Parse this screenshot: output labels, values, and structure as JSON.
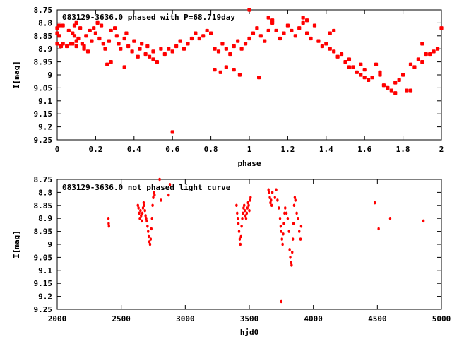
{
  "chart_data": [
    {
      "type": "scatter",
      "title": "083129-3636.0 phased with P=68.719day",
      "xlabel": "phase",
      "ylabel": "I[mag]",
      "xlim": [
        0,
        2
      ],
      "ylim": [
        9.25,
        8.75
      ],
      "y_inverted": true,
      "xticks": [
        "0",
        "0.2",
        "0.4",
        "0.6",
        "0.8",
        "1",
        "1.2",
        "1.4",
        "1.6",
        "1.8",
        "2"
      ],
      "xtick_values": [
        0,
        0.2,
        0.4,
        0.6,
        0.8,
        1.0,
        1.2,
        1.4,
        1.6,
        1.8,
        2.0
      ],
      "yticks": [
        "8.75",
        "8.8",
        "8.85",
        "8.9",
        "8.95",
        "9",
        "9.05",
        "9.1",
        "9.15",
        "9.2",
        "9.25"
      ],
      "ytick_values": [
        8.75,
        8.8,
        8.85,
        8.9,
        8.95,
        9.0,
        9.05,
        9.1,
        9.15,
        9.2,
        9.25
      ],
      "marker_color": "#ff0000",
      "points": [
        [
          0.0,
          8.82
        ],
        [
          0.01,
          8.81
        ],
        [
          0.0,
          8.84
        ],
        [
          0.01,
          8.85
        ],
        [
          0.0,
          8.88
        ],
        [
          0.02,
          8.89
        ],
        [
          0.03,
          8.88
        ],
        [
          0.05,
          8.89
        ],
        [
          0.03,
          8.81
        ],
        [
          0.06,
          8.83
        ],
        [
          0.08,
          8.84
        ],
        [
          0.09,
          8.85
        ],
        [
          0.1,
          8.87
        ],
        [
          0.07,
          8.88
        ],
        [
          0.09,
          8.81
        ],
        [
          0.1,
          8.8
        ],
        [
          0.12,
          8.82
        ],
        [
          0.11,
          8.86
        ],
        [
          0.13,
          8.88
        ],
        [
          0.14,
          8.89
        ],
        [
          0.16,
          8.91
        ],
        [
          0.15,
          8.85
        ],
        [
          0.17,
          8.83
        ],
        [
          0.19,
          8.82
        ],
        [
          0.2,
          8.84
        ],
        [
          0.22,
          8.86
        ],
        [
          0.21,
          8.8
        ],
        [
          0.23,
          8.81
        ],
        [
          0.24,
          8.88
        ],
        [
          0.25,
          8.9
        ],
        [
          0.27,
          8.87
        ],
        [
          0.28,
          8.83
        ],
        [
          0.3,
          8.82
        ],
        [
          0.31,
          8.85
        ],
        [
          0.32,
          8.88
        ],
        [
          0.33,
          8.9
        ],
        [
          0.35,
          8.86
        ],
        [
          0.36,
          8.84
        ],
        [
          0.37,
          8.89
        ],
        [
          0.39,
          8.91
        ],
        [
          0.4,
          8.87
        ],
        [
          0.42,
          8.93
        ],
        [
          0.43,
          8.9
        ],
        [
          0.44,
          8.88
        ],
        [
          0.46,
          8.92
        ],
        [
          0.47,
          8.89
        ],
        [
          0.48,
          8.93
        ],
        [
          0.5,
          8.91
        ],
        [
          0.52,
          8.95
        ],
        [
          0.54,
          8.9
        ],
        [
          0.56,
          8.92
        ],
        [
          0.58,
          8.9
        ],
        [
          0.6,
          8.91
        ],
        [
          0.62,
          8.89
        ],
        [
          0.64,
          8.87
        ],
        [
          0.66,
          8.9
        ],
        [
          0.68,
          8.88
        ],
        [
          0.7,
          8.86
        ],
        [
          0.72,
          8.84
        ],
        [
          0.74,
          8.86
        ],
        [
          0.76,
          8.85
        ],
        [
          0.78,
          8.83
        ],
        [
          0.8,
          8.84
        ],
        [
          0.82,
          8.9
        ],
        [
          0.84,
          8.91
        ],
        [
          0.86,
          8.88
        ],
        [
          0.88,
          8.9
        ],
        [
          0.9,
          8.92
        ],
        [
          0.92,
          8.89
        ],
        [
          0.94,
          8.87
        ],
        [
          0.96,
          8.9
        ],
        [
          0.98,
          8.88
        ],
        [
          1.0,
          8.86
        ],
        [
          1.02,
          8.84
        ],
        [
          1.04,
          8.82
        ],
        [
          1.06,
          8.85
        ],
        [
          1.08,
          8.87
        ],
        [
          1.1,
          8.83
        ],
        [
          1.12,
          8.8
        ],
        [
          1.14,
          8.83
        ],
        [
          1.16,
          8.86
        ],
        [
          1.18,
          8.84
        ],
        [
          1.2,
          8.81
        ],
        [
          1.22,
          8.83
        ],
        [
          1.24,
          8.85
        ],
        [
          1.26,
          8.82
        ],
        [
          1.28,
          8.8
        ],
        [
          1.3,
          8.84
        ],
        [
          1.32,
          8.86
        ],
        [
          1.34,
          8.81
        ],
        [
          1.36,
          8.87
        ],
        [
          1.38,
          8.89
        ],
        [
          1.4,
          8.88
        ],
        [
          1.42,
          8.9
        ],
        [
          1.44,
          8.91
        ],
        [
          1.46,
          8.93
        ],
        [
          1.48,
          8.92
        ],
        [
          1.5,
          8.95
        ],
        [
          1.52,
          8.94
        ],
        [
          1.54,
          8.97
        ],
        [
          1.56,
          8.99
        ],
        [
          1.58,
          9.0
        ],
        [
          1.6,
          8.98
        ],
        [
          1.62,
          9.02
        ],
        [
          1.64,
          9.01
        ],
        [
          1.66,
          8.96
        ],
        [
          1.68,
          9.0
        ],
        [
          1.7,
          9.04
        ],
        [
          1.72,
          9.05
        ],
        [
          1.74,
          9.06
        ],
        [
          1.76,
          9.03
        ],
        [
          1.78,
          9.02
        ],
        [
          1.8,
          9.0
        ],
        [
          1.82,
          9.06
        ],
        [
          1.84,
          8.96
        ],
        [
          1.86,
          8.97
        ],
        [
          1.88,
          8.94
        ],
        [
          1.9,
          8.95
        ],
        [
          1.92,
          8.92
        ],
        [
          1.94,
          8.92
        ],
        [
          1.96,
          8.91
        ],
        [
          1.98,
          8.9
        ],
        [
          2.0,
          8.82
        ],
        [
          0.02,
          8.89
        ],
        [
          0.08,
          8.88
        ],
        [
          0.1,
          8.89
        ],
        [
          0.14,
          8.9
        ],
        [
          0.18,
          8.87
        ],
        [
          0.26,
          8.96
        ],
        [
          0.28,
          8.95
        ],
        [
          0.35,
          8.97
        ],
        [
          0.5,
          8.94
        ],
        [
          0.6,
          9.22
        ],
        [
          0.82,
          8.98
        ],
        [
          0.85,
          8.99
        ],
        [
          0.88,
          8.97
        ],
        [
          0.92,
          8.98
        ],
        [
          0.95,
          9.0
        ],
        [
          1.0,
          8.75
        ],
        [
          1.05,
          9.01
        ],
        [
          1.1,
          8.78
        ],
        [
          1.12,
          8.79
        ],
        [
          1.28,
          8.78
        ],
        [
          1.3,
          8.79
        ],
        [
          1.42,
          8.84
        ],
        [
          1.44,
          8.83
        ],
        [
          1.52,
          8.97
        ],
        [
          1.58,
          8.96
        ],
        [
          1.6,
          9.01
        ],
        [
          1.68,
          8.99
        ],
        [
          1.76,
          9.07
        ],
        [
          1.84,
          9.06
        ],
        [
          1.9,
          8.88
        ]
      ]
    },
    {
      "type": "scatter",
      "title": "083129-3636.0 not phased light curve",
      "xlabel": "hjd0",
      "ylabel": "I[mag]",
      "xlim": [
        2000,
        5000
      ],
      "ylim": [
        9.25,
        8.75
      ],
      "y_inverted": true,
      "xticks": [
        "2000",
        "2500",
        "3000",
        "3500",
        "4000",
        "4500",
        "5000"
      ],
      "xtick_values": [
        2000,
        2500,
        3000,
        3500,
        4000,
        4500,
        5000
      ],
      "yticks": [
        "8.75",
        "8.8",
        "8.85",
        "8.9",
        "8.95",
        "9",
        "9.05",
        "9.1",
        "9.15",
        "9.2",
        "9.25"
      ],
      "ytick_values": [
        8.75,
        8.8,
        8.85,
        8.9,
        8.95,
        9.0,
        9.05,
        9.1,
        9.15,
        9.2,
        9.25
      ],
      "marker_color": "#ff0000",
      "points": [
        [
          2400,
          8.9
        ],
        [
          2402,
          8.92
        ],
        [
          2404,
          8.93
        ],
        [
          2630,
          8.85
        ],
        [
          2635,
          8.86
        ],
        [
          2640,
          8.88
        ],
        [
          2645,
          8.9
        ],
        [
          2650,
          8.87
        ],
        [
          2655,
          8.89
        ],
        [
          2660,
          8.91
        ],
        [
          2665,
          8.88
        ],
        [
          2670,
          8.86
        ],
        [
          2675,
          8.84
        ],
        [
          2680,
          8.85
        ],
        [
          2685,
          8.87
        ],
        [
          2690,
          8.89
        ],
        [
          2695,
          8.9
        ],
        [
          2700,
          8.91
        ],
        [
          2705,
          8.93
        ],
        [
          2710,
          8.95
        ],
        [
          2715,
          8.97
        ],
        [
          2720,
          8.99
        ],
        [
          2725,
          9.0
        ],
        [
          2730,
          8.98
        ],
        [
          2735,
          8.94
        ],
        [
          2740,
          8.9
        ],
        [
          2745,
          8.85
        ],
        [
          2750,
          8.82
        ],
        [
          2755,
          8.8
        ],
        [
          2760,
          8.81
        ],
        [
          2800,
          8.75
        ],
        [
          2810,
          8.83
        ],
        [
          2870,
          8.81
        ],
        [
          2880,
          8.77
        ],
        [
          3400,
          8.85
        ],
        [
          3405,
          8.88
        ],
        [
          3410,
          8.9
        ],
        [
          3415,
          8.92
        ],
        [
          3420,
          8.95
        ],
        [
          3425,
          8.98
        ],
        [
          3430,
          9.0
        ],
        [
          3435,
          8.97
        ],
        [
          3440,
          8.93
        ],
        [
          3445,
          8.9
        ],
        [
          3450,
          8.88
        ],
        [
          3455,
          8.86
        ],
        [
          3460,
          8.85
        ],
        [
          3465,
          8.87
        ],
        [
          3470,
          8.89
        ],
        [
          3475,
          8.9
        ],
        [
          3480,
          8.88
        ],
        [
          3485,
          8.86
        ],
        [
          3490,
          8.84
        ],
        [
          3495,
          8.85
        ],
        [
          3500,
          8.87
        ],
        [
          3505,
          8.83
        ],
        [
          3510,
          8.82
        ],
        [
          3650,
          8.79
        ],
        [
          3655,
          8.8
        ],
        [
          3660,
          8.82
        ],
        [
          3665,
          8.84
        ],
        [
          3670,
          8.83
        ],
        [
          3675,
          8.85
        ],
        [
          3680,
          8.8
        ],
        [
          3700,
          8.82
        ],
        [
          3710,
          8.79
        ],
        [
          3720,
          8.83
        ],
        [
          3730,
          8.86
        ],
        [
          3740,
          8.9
        ],
        [
          3745,
          8.93
        ],
        [
          3750,
          8.95
        ],
        [
          3755,
          8.98
        ],
        [
          3760,
          9.0
        ],
        [
          3765,
          8.96
        ],
        [
          3770,
          8.92
        ],
        [
          3775,
          8.88
        ],
        [
          3780,
          8.86
        ],
        [
          3790,
          8.88
        ],
        [
          3800,
          8.9
        ],
        [
          3810,
          8.95
        ],
        [
          3815,
          9.02
        ],
        [
          3820,
          9.05
        ],
        [
          3825,
          9.07
        ],
        [
          3830,
          9.08
        ],
        [
          3835,
          9.03
        ],
        [
          3840,
          8.98
        ],
        [
          3845,
          8.92
        ],
        [
          3850,
          8.85
        ],
        [
          3855,
          8.82
        ],
        [
          3860,
          8.83
        ],
        [
          3870,
          8.88
        ],
        [
          3880,
          8.9
        ],
        [
          3890,
          8.95
        ],
        [
          3900,
          8.98
        ],
        [
          3905,
          8.93
        ],
        [
          3750,
          9.22
        ],
        [
          4480,
          8.84
        ],
        [
          4510,
          8.94
        ],
        [
          4600,
          8.9
        ],
        [
          4860,
          8.91
        ]
      ]
    }
  ]
}
